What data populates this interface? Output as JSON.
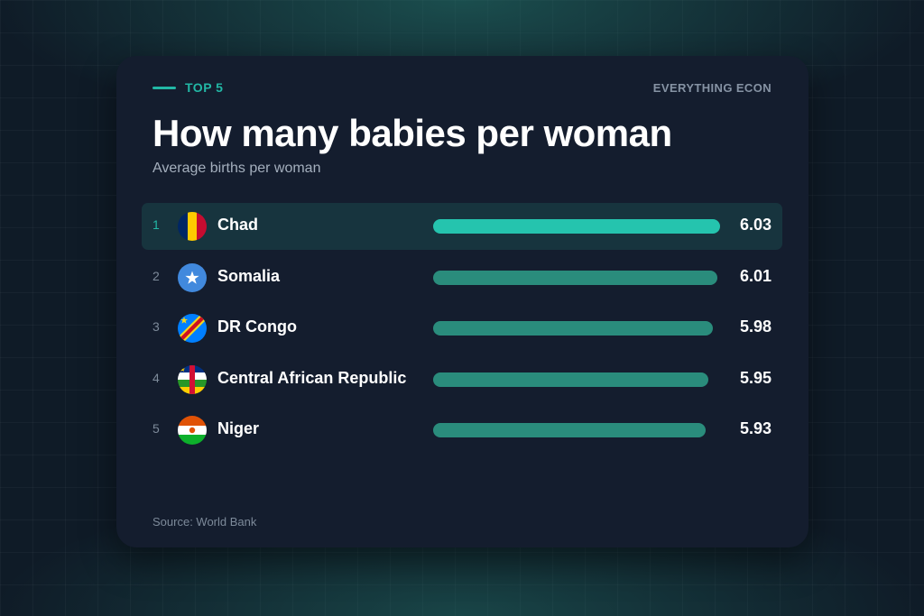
{
  "header": {
    "tag": "TOP 5",
    "brand": "EVERYTHING ECON"
  },
  "colors": {
    "accent": "#22b8a6",
    "bar": "#2a8c7c",
    "bar_highlight": "#25c4ae",
    "card": "#141d2e",
    "row_highlight": "#17343e"
  },
  "chart_data": {
    "type": "bar",
    "orientation": "horizontal",
    "title": "How many babies per woman",
    "subtitle": "Average births per woman",
    "source": "Source: World Bank",
    "categories": [
      "Chad",
      "Somalia",
      "DR Congo",
      "Central African Republic",
      "Niger"
    ],
    "values": [
      6.03,
      6.01,
      5.98,
      5.95,
      5.93
    ],
    "value_labels": [
      "6.03",
      "6.01",
      "5.98",
      "5.95",
      "5.93"
    ],
    "ranks": [
      "1",
      "2",
      "3",
      "4",
      "5"
    ],
    "flags": [
      "chad-flag-icon",
      "somalia-flag-icon",
      "dr-congo-flag-icon",
      "central-african-republic-flag-icon",
      "niger-flag-icon"
    ],
    "highlighted_rank": 1,
    "xlim": [
      0,
      6.03
    ],
    "grid": false,
    "legend": "none"
  }
}
